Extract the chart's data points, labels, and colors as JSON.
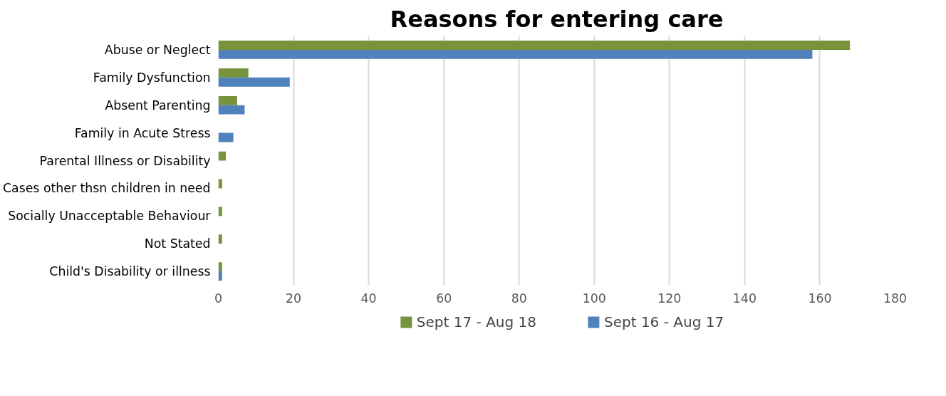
{
  "chart_data": {
    "type": "bar",
    "orientation": "horizontal",
    "title": "Reasons for entering care",
    "categories": [
      "Abuse or Neglect",
      "Family Dysfunction",
      "Absent Parenting",
      "Family in Acute Stress",
      "Parental Illness or Disability",
      "Cases other thsn children in need",
      "Socially Unacceptable Behaviour",
      "Not Stated",
      "Child's Disability or illness"
    ],
    "series": [
      {
        "name": "Sept 17 - Aug 18",
        "color": "#77933c",
        "values": [
          168,
          8,
          5,
          null,
          2,
          1,
          1,
          1,
          1
        ]
      },
      {
        "name": "Sept 16 - Aug 17",
        "color": "#4f81bd",
        "values": [
          158,
          19,
          7,
          4,
          null,
          null,
          null,
          null,
          1
        ]
      }
    ],
    "xlim": [
      0,
      180
    ],
    "xticks": [
      0,
      20,
      40,
      60,
      80,
      100,
      120,
      140,
      160,
      180
    ],
    "grid": "x",
    "legend": "bottom"
  }
}
